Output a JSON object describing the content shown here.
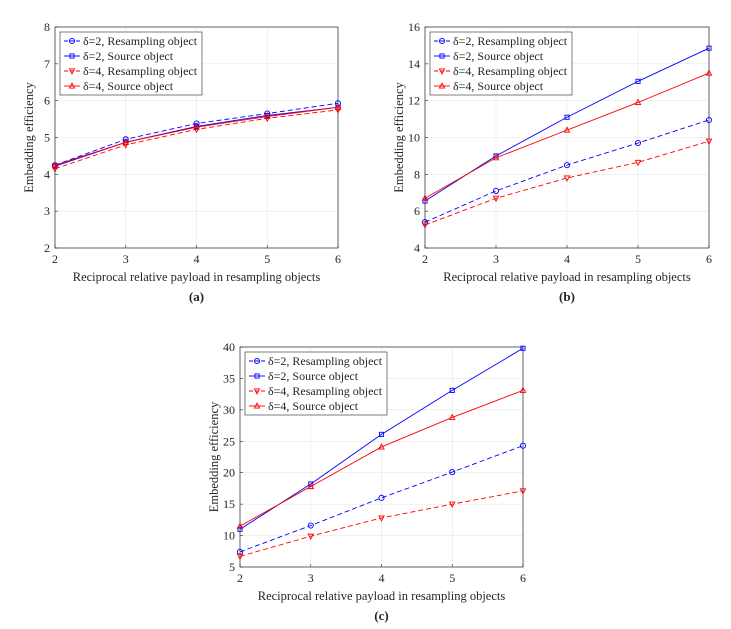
{
  "chart_data": [
    {
      "type": "line",
      "panel_label": "(a)",
      "xlabel": "Reciprocal relative payload in resampling objects",
      "ylabel": "Embedding efficiency",
      "x": [
        2,
        3,
        4,
        5,
        6
      ],
      "xlim": [
        2,
        6
      ],
      "ylim": [
        2,
        8
      ],
      "xticks": [
        2,
        3,
        4,
        5,
        6
      ],
      "yticks": [
        2,
        3,
        4,
        5,
        6,
        7,
        8
      ],
      "grid": true,
      "legend_position": "top-left",
      "series": [
        {
          "name": "δ=2, Resampling object",
          "color": "#0000ff",
          "dash": "dashed",
          "marker": "circle",
          "values": [
            4.25,
            4.95,
            5.38,
            5.65,
            5.93
          ]
        },
        {
          "name": "δ=2, Source object",
          "color": "#0000ff",
          "dash": "solid",
          "marker": "square",
          "values": [
            4.22,
            4.87,
            5.3,
            5.6,
            5.82
          ]
        },
        {
          "name": "δ=4, Resampling object",
          "color": "#ff0000",
          "dash": "dashed",
          "marker": "triangle-down",
          "values": [
            4.15,
            4.8,
            5.22,
            5.52,
            5.75
          ]
        },
        {
          "name": "δ=4, Source object",
          "color": "#ff0000",
          "dash": "solid",
          "marker": "triangle-up",
          "values": [
            4.25,
            4.87,
            5.28,
            5.57,
            5.82
          ]
        }
      ]
    },
    {
      "type": "line",
      "panel_label": "(b)",
      "xlabel": "Reciprocal relative payload in resampling objects",
      "ylabel": "Embedding efficiency",
      "x": [
        2,
        3,
        4,
        5,
        6
      ],
      "xlim": [
        2,
        6
      ],
      "ylim": [
        4,
        16
      ],
      "xticks": [
        2,
        3,
        4,
        5,
        6
      ],
      "yticks": [
        4,
        6,
        8,
        10,
        12,
        14,
        16
      ],
      "grid": true,
      "legend_position": "top-left",
      "series": [
        {
          "name": "δ=2, Resampling object",
          "color": "#0000ff",
          "dash": "dashed",
          "marker": "circle",
          "values": [
            5.4,
            7.1,
            8.5,
            9.7,
            10.95
          ]
        },
        {
          "name": "δ=2, Source object",
          "color": "#0000ff",
          "dash": "solid",
          "marker": "square",
          "values": [
            6.55,
            9.0,
            11.1,
            13.05,
            14.85
          ]
        },
        {
          "name": "δ=4, Resampling object",
          "color": "#ff0000",
          "dash": "dashed",
          "marker": "triangle-down",
          "values": [
            5.25,
            6.7,
            7.8,
            8.65,
            9.8
          ]
        },
        {
          "name": "δ=4, Source object",
          "color": "#ff0000",
          "dash": "solid",
          "marker": "triangle-up",
          "values": [
            6.7,
            8.9,
            10.4,
            11.9,
            13.5
          ]
        }
      ]
    },
    {
      "type": "line",
      "panel_label": "(c)",
      "xlabel": "Reciprocal relative payload in resampling objects",
      "ylabel": "Embedding efficiency",
      "x": [
        2,
        3,
        4,
        5,
        6
      ],
      "xlim": [
        2,
        6
      ],
      "ylim": [
        5,
        40
      ],
      "xticks": [
        2,
        3,
        4,
        5,
        6
      ],
      "yticks": [
        5,
        10,
        15,
        20,
        25,
        30,
        35,
        40
      ],
      "grid": true,
      "legend_position": "top-left",
      "series": [
        {
          "name": "δ=2, Resampling object",
          "color": "#0000ff",
          "dash": "dashed",
          "marker": "circle",
          "values": [
            7.4,
            11.6,
            16.0,
            20.1,
            24.3
          ]
        },
        {
          "name": "δ=2, Source object",
          "color": "#0000ff",
          "dash": "solid",
          "marker": "square",
          "values": [
            11.0,
            18.2,
            26.1,
            33.1,
            39.8
          ]
        },
        {
          "name": "δ=4, Resampling object",
          "color": "#ff0000",
          "dash": "dashed",
          "marker": "triangle-down",
          "values": [
            6.7,
            9.9,
            12.8,
            15.0,
            17.1
          ]
        },
        {
          "name": "δ=4, Source object",
          "color": "#ff0000",
          "dash": "solid",
          "marker": "triangle-up",
          "values": [
            11.5,
            17.8,
            24.1,
            28.8,
            33.1
          ]
        }
      ]
    }
  ]
}
